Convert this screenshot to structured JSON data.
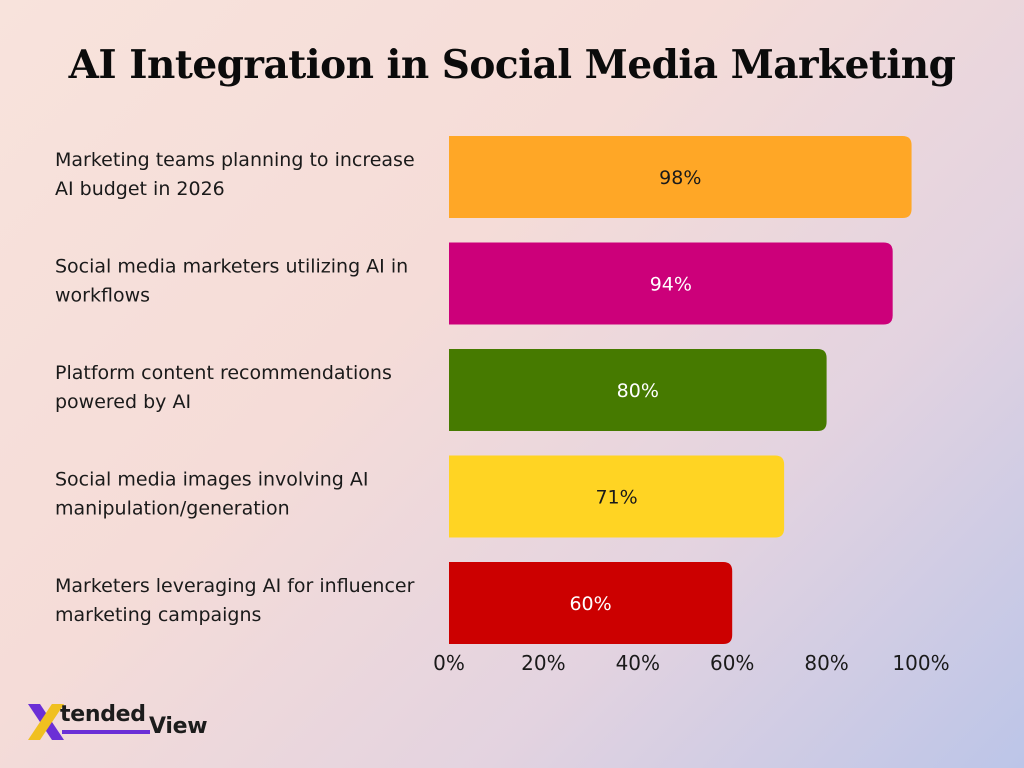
{
  "chart_data": {
    "type": "bar",
    "orientation": "horizontal",
    "title": "AI Integration in Social Media Marketing",
    "categories": [
      "Marketing teams planning to increase AI budget in 2026",
      "Social media marketers utilizing AI in workflows",
      "Platform content recommendations powered by AI",
      "Social media images involving AI manipulation/generation",
      "Marketers leveraging AI for influencer marketing campaigns"
    ],
    "category_lines": [
      [
        "Marketing teams planning to increase",
        "AI budget in 2026"
      ],
      [
        "Social media marketers utilizing AI in",
        "workflows"
      ],
      [
        "Platform content recommendations",
        "powered by AI"
      ],
      [
        "Social media images involving AI",
        "manipulation/generation"
      ],
      [
        "Marketers leveraging AI for influencer",
        "marketing campaigns"
      ]
    ],
    "values": [
      98,
      94,
      80,
      71,
      60
    ],
    "value_labels": [
      "98%",
      "94%",
      "80%",
      "71%",
      "60%"
    ],
    "colors": [
      "#ffa726",
      "#cc007a",
      "#467a00",
      "#ffd423",
      "#cc0000"
    ],
    "label_colors": [
      "#1a1a1a",
      "#ffffff",
      "#ffffff",
      "#1a1a1a",
      "#ffffff"
    ],
    "xlim": [
      0,
      100
    ],
    "x_ticks": [
      0,
      20,
      40,
      60,
      80,
      100
    ],
    "x_tick_labels": [
      "0%",
      "20%",
      "40%",
      "60%",
      "80%",
      "100%"
    ],
    "grid": false,
    "legend": "none"
  },
  "logo": {
    "text_part1": "tended",
    "text_part2": "View",
    "icon": "x-logo-icon"
  }
}
